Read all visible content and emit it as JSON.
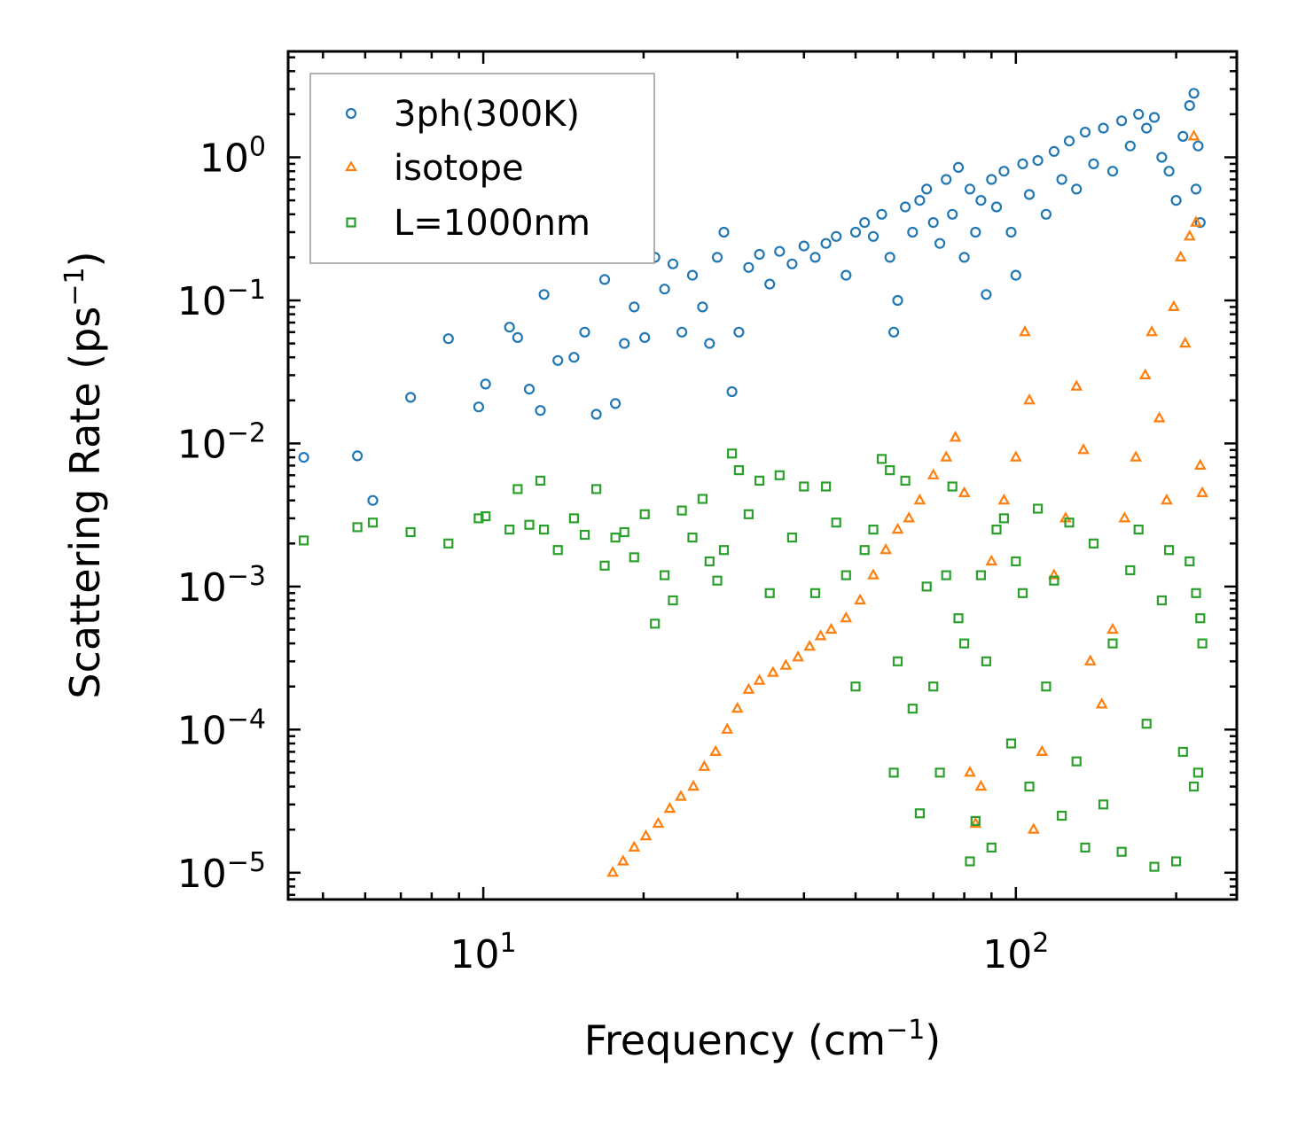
{
  "chart_data": {
    "type": "scatter",
    "title": "",
    "xlabel": "Frequency (cm",
    "xlabel_exp": "−1",
    "xlabel_end": ")",
    "ylabel": "Scattering Rate (ps",
    "ylabel_exp": "−1",
    "ylabel_end": ")",
    "xscale": "log",
    "yscale": "log",
    "xlim": [
      4.3,
      260
    ],
    "ylim": [
      6.5e-06,
      5.5
    ],
    "x_ticks": [
      {
        "value": 10,
        "base": "10",
        "exp": "1"
      },
      {
        "value": 100,
        "base": "10",
        "exp": "2"
      }
    ],
    "y_ticks": [
      {
        "value": 1,
        "base": "10",
        "exp": "0"
      },
      {
        "value": 0.1,
        "base": "10",
        "exp": "−1"
      },
      {
        "value": 0.01,
        "base": "10",
        "exp": "−2"
      },
      {
        "value": 0.001,
        "base": "10",
        "exp": "−3"
      },
      {
        "value": 0.0001,
        "base": "10",
        "exp": "−4"
      },
      {
        "value": 1e-05,
        "base": "10",
        "exp": "−5"
      }
    ],
    "grid": false,
    "legend_position": "top-left",
    "series": [
      {
        "name": "3ph(300K)",
        "marker": "circle",
        "color": "#1f77b4",
        "points": [
          [
            4.6,
            0.008
          ],
          [
            5.8,
            0.0082
          ],
          [
            6.2,
            0.004
          ],
          [
            7.3,
            0.021
          ],
          [
            8.6,
            0.054
          ],
          [
            9.8,
            0.018
          ],
          [
            10.1,
            0.026
          ],
          [
            11.2,
            0.065
          ],
          [
            11.6,
            0.055
          ],
          [
            12.2,
            0.024
          ],
          [
            12.8,
            0.017
          ],
          [
            13.0,
            0.11
          ],
          [
            13.8,
            0.038
          ],
          [
            14.8,
            0.04
          ],
          [
            15.5,
            0.06
          ],
          [
            16.3,
            0.016
          ],
          [
            16.9,
            0.14
          ],
          [
            17.7,
            0.019
          ],
          [
            18.4,
            0.05
          ],
          [
            19.2,
            0.09
          ],
          [
            20.1,
            0.055
          ],
          [
            21.0,
            0.2
          ],
          [
            21.9,
            0.12
          ],
          [
            22.7,
            0.18
          ],
          [
            23.6,
            0.06
          ],
          [
            24.7,
            0.15
          ],
          [
            25.8,
            0.09
          ],
          [
            26.6,
            0.05
          ],
          [
            27.5,
            0.2
          ],
          [
            28.3,
            0.3
          ],
          [
            29.3,
            0.023
          ],
          [
            30.2,
            0.06
          ],
          [
            31.5,
            0.17
          ],
          [
            33.0,
            0.21
          ],
          [
            34.5,
            0.13
          ],
          [
            36.0,
            0.22
          ],
          [
            38.0,
            0.18
          ],
          [
            40.0,
            0.24
          ],
          [
            42.0,
            0.2
          ],
          [
            44.0,
            0.25
          ],
          [
            46.0,
            0.28
          ],
          [
            48.0,
            0.15
          ],
          [
            50.0,
            0.3
          ],
          [
            52.0,
            0.35
          ],
          [
            54.0,
            0.28
          ],
          [
            56.0,
            0.4
          ],
          [
            58.0,
            0.2
          ],
          [
            59.0,
            0.06
          ],
          [
            60.0,
            0.1
          ],
          [
            62.0,
            0.45
          ],
          [
            64.0,
            0.3
          ],
          [
            66.0,
            0.5
          ],
          [
            68.0,
            0.6
          ],
          [
            70.0,
            0.35
          ],
          [
            72.0,
            0.25
          ],
          [
            74.0,
            0.7
          ],
          [
            76.0,
            0.4
          ],
          [
            78.0,
            0.85
          ],
          [
            80.0,
            0.2
          ],
          [
            82.0,
            0.6
          ],
          [
            84.0,
            0.3
          ],
          [
            86.0,
            0.5
          ],
          [
            88.0,
            0.11
          ],
          [
            90.0,
            0.7
          ],
          [
            92.0,
            0.45
          ],
          [
            95.0,
            0.8
          ],
          [
            98.0,
            0.3
          ],
          [
            100.0,
            0.15
          ],
          [
            103.0,
            0.9
          ],
          [
            106.0,
            0.55
          ],
          [
            110.0,
            0.95
          ],
          [
            114.0,
            0.4
          ],
          [
            118.0,
            1.1
          ],
          [
            122.0,
            0.7
          ],
          [
            126.0,
            1.3
          ],
          [
            130.0,
            0.6
          ],
          [
            135.0,
            1.5
          ],
          [
            140.0,
            0.9
          ],
          [
            146.0,
            1.6
          ],
          [
            152.0,
            0.8
          ],
          [
            158.0,
            1.8
          ],
          [
            164.0,
            1.2
          ],
          [
            170.0,
            2.0
          ],
          [
            176.0,
            1.6
          ],
          [
            182.0,
            1.9
          ],
          [
            188.0,
            1.0
          ],
          [
            194.0,
            0.8
          ],
          [
            200.0,
            0.5
          ],
          [
            206.0,
            1.4
          ],
          [
            212.0,
            2.3
          ],
          [
            216.0,
            2.8
          ],
          [
            218.0,
            0.6
          ],
          [
            220.0,
            1.2
          ],
          [
            222.0,
            0.35
          ]
        ]
      },
      {
        "name": "isotope",
        "marker": "triangle",
        "color": "#ff7f0e",
        "points": [
          [
            17.5,
            1e-05
          ],
          [
            18.3,
            1.2e-05
          ],
          [
            19.2,
            1.5e-05
          ],
          [
            20.2,
            1.8e-05
          ],
          [
            21.3,
            2.2e-05
          ],
          [
            22.4,
            2.8e-05
          ],
          [
            23.5,
            3.4e-05
          ],
          [
            24.8,
            4e-05
          ],
          [
            26.0,
            5.5e-05
          ],
          [
            27.3,
            7e-05
          ],
          [
            28.7,
            0.0001
          ],
          [
            30.0,
            0.00014
          ],
          [
            31.5,
            0.00019
          ],
          [
            33.0,
            0.00022
          ],
          [
            35.0,
            0.00025
          ],
          [
            37.0,
            0.00028
          ],
          [
            39.0,
            0.00032
          ],
          [
            41.0,
            0.00038
          ],
          [
            43.0,
            0.00045
          ],
          [
            45.0,
            0.0005
          ],
          [
            48.0,
            0.0006
          ],
          [
            51.0,
            0.0008
          ],
          [
            54.0,
            0.0012
          ],
          [
            57.0,
            0.0018
          ],
          [
            60.0,
            0.0025
          ],
          [
            63.0,
            0.003
          ],
          [
            66.0,
            0.004
          ],
          [
            70.0,
            0.006
          ],
          [
            74.0,
            0.008
          ],
          [
            77.0,
            0.011
          ],
          [
            80.0,
            0.0045
          ],
          [
            82.0,
            5e-05
          ],
          [
            84.0,
            2.2e-05
          ],
          [
            86.0,
            4e-05
          ],
          [
            90.0,
            0.0015
          ],
          [
            95.0,
            0.004
          ],
          [
            100.0,
            0.008
          ],
          [
            104.0,
            0.06
          ],
          [
            106.0,
            0.02
          ],
          [
            108.0,
            2e-05
          ],
          [
            112.0,
            7e-05
          ],
          [
            118.0,
            0.0012
          ],
          [
            124.0,
            0.003
          ],
          [
            130.0,
            0.025
          ],
          [
            134.0,
            0.009
          ],
          [
            138.0,
            0.0003
          ],
          [
            145.0,
            0.00015
          ],
          [
            152.0,
            0.0005
          ],
          [
            160.0,
            0.003
          ],
          [
            168.0,
            0.008
          ],
          [
            175.0,
            0.03
          ],
          [
            180.0,
            0.06
          ],
          [
            186.0,
            0.015
          ],
          [
            192.0,
            0.004
          ],
          [
            198.0,
            0.09
          ],
          [
            204.0,
            0.2
          ],
          [
            208.0,
            0.05
          ],
          [
            212.0,
            0.28
          ],
          [
            216.0,
            1.4
          ],
          [
            218.0,
            0.35
          ],
          [
            222.0,
            0.007
          ],
          [
            224.0,
            0.0045
          ]
        ]
      },
      {
        "name": "L=1000nm",
        "marker": "square",
        "color": "#2ca02c",
        "points": [
          [
            4.6,
            0.0021
          ],
          [
            5.8,
            0.0026
          ],
          [
            6.2,
            0.0028
          ],
          [
            7.3,
            0.0024
          ],
          [
            8.6,
            0.002
          ],
          [
            9.8,
            0.003
          ],
          [
            10.1,
            0.0031
          ],
          [
            11.2,
            0.0025
          ],
          [
            11.6,
            0.0048
          ],
          [
            12.2,
            0.0027
          ],
          [
            12.8,
            0.0055
          ],
          [
            13.0,
            0.0025
          ],
          [
            13.8,
            0.0018
          ],
          [
            14.8,
            0.003
          ],
          [
            15.5,
            0.0023
          ],
          [
            16.3,
            0.0048
          ],
          [
            16.9,
            0.0014
          ],
          [
            17.7,
            0.0022
          ],
          [
            18.4,
            0.0024
          ],
          [
            19.2,
            0.0016
          ],
          [
            20.1,
            0.0032
          ],
          [
            21.0,
            0.00055
          ],
          [
            21.9,
            0.0012
          ],
          [
            22.7,
            0.0008
          ],
          [
            23.6,
            0.0034
          ],
          [
            24.7,
            0.0022
          ],
          [
            25.8,
            0.0041
          ],
          [
            26.6,
            0.0015
          ],
          [
            27.5,
            0.0011
          ],
          [
            28.3,
            0.0018
          ],
          [
            29.3,
            0.0085
          ],
          [
            30.2,
            0.0065
          ],
          [
            31.5,
            0.0032
          ],
          [
            33.0,
            0.0055
          ],
          [
            34.5,
            0.0009
          ],
          [
            36.0,
            0.006
          ],
          [
            38.0,
            0.0022
          ],
          [
            40.0,
            0.005
          ],
          [
            42.0,
            0.0009
          ],
          [
            44.0,
            0.005
          ],
          [
            46.0,
            0.0028
          ],
          [
            48.0,
            0.0012
          ],
          [
            50.0,
            0.0002
          ],
          [
            52.0,
            0.0018
          ],
          [
            54.0,
            0.0025
          ],
          [
            56.0,
            0.0078
          ],
          [
            58.0,
            0.0065
          ],
          [
            59.0,
            5e-05
          ],
          [
            60.0,
            0.0003
          ],
          [
            62.0,
            0.0055
          ],
          [
            64.0,
            0.00014
          ],
          [
            66.0,
            2.6e-05
          ],
          [
            68.0,
            0.001
          ],
          [
            70.0,
            0.0002
          ],
          [
            72.0,
            5e-05
          ],
          [
            74.0,
            0.0012
          ],
          [
            76.0,
            0.005
          ],
          [
            78.0,
            0.0006
          ],
          [
            80.0,
            0.0004
          ],
          [
            82.0,
            1.2e-05
          ],
          [
            84.0,
            2.3e-05
          ],
          [
            86.0,
            0.0012
          ],
          [
            88.0,
            0.0003
          ],
          [
            90.0,
            1.5e-05
          ],
          [
            92.0,
            0.0025
          ],
          [
            95.0,
            0.003
          ],
          [
            98.0,
            8e-05
          ],
          [
            100.0,
            0.0015
          ],
          [
            103.0,
            0.0009
          ],
          [
            106.0,
            4e-05
          ],
          [
            110.0,
            0.0035
          ],
          [
            114.0,
            0.0002
          ],
          [
            118.0,
            0.0011
          ],
          [
            122.0,
            2.5e-05
          ],
          [
            126.0,
            0.0028
          ],
          [
            130.0,
            6e-05
          ],
          [
            135.0,
            1.5e-05
          ],
          [
            140.0,
            0.002
          ],
          [
            146.0,
            3e-05
          ],
          [
            152.0,
            0.0004
          ],
          [
            158.0,
            1.4e-05
          ],
          [
            164.0,
            0.0013
          ],
          [
            170.0,
            0.0025
          ],
          [
            176.0,
            0.00011
          ],
          [
            182.0,
            1.1e-05
          ],
          [
            188.0,
            0.0008
          ],
          [
            194.0,
            0.0018
          ],
          [
            200.0,
            1.2e-05
          ],
          [
            206.0,
            7e-05
          ],
          [
            212.0,
            0.0015
          ],
          [
            216.0,
            4e-05
          ],
          [
            218.0,
            0.0009
          ],
          [
            220.0,
            5e-05
          ],
          [
            222.0,
            0.0006
          ],
          [
            224.0,
            0.0004
          ]
        ]
      }
    ]
  },
  "colors": {
    "3ph": "#1f77b4",
    "isotope": "#ff7f0e",
    "boundary": "#2ca02c"
  }
}
